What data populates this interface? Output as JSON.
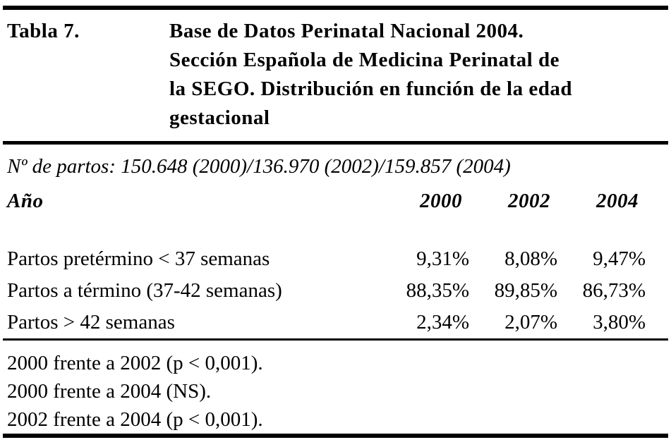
{
  "page": {
    "background": "#ffffff",
    "text_color": "#000000"
  },
  "table": {
    "label": "Tabla 7.",
    "title_lines": [
      "Base de Datos Perinatal Nacional 2004.",
      "Sección Española de Medicina Perinatal de",
      "la SEGO. Distribución en función de la edad",
      "gestacional"
    ],
    "subtitle": "Nº de partos: 150.648 (2000)/136.970 (2002)/159.857 (2004)",
    "columns": {
      "row_header": "Año",
      "years": [
        "2000",
        "2002",
        "2004"
      ]
    },
    "rows": [
      {
        "label": "Partos pretérmino < 37 semanas",
        "values": [
          "9,31%",
          "8,08%",
          "9,47%"
        ]
      },
      {
        "label": "Partos a término (37-42 semanas)",
        "values": [
          "88,35%",
          "89,85%",
          "86,73%"
        ]
      },
      {
        "label": "Partos > 42 semanas",
        "values": [
          "2,34%",
          "2,07%",
          "3,80%"
        ]
      }
    ],
    "footnotes": [
      "2000 frente a 2002 (p < 0,001).",
      "2000 frente a 2004 (NS).",
      "2002 frente a 2004 (p < 0,001)."
    ]
  },
  "chart_data": {
    "type": "table",
    "title": "Base de Datos Perinatal Nacional 2004. Sección Española de Medicina Perinatal de la SEGO. Distribución en función de la edad gestacional",
    "subtitle": "Nº de partos: 150.648 (2000)/136.970 (2002)/159.857 (2004)",
    "categories": [
      "Partos pretérmino < 37 semanas",
      "Partos a término (37-42 semanas)",
      "Partos > 42 semanas"
    ],
    "series": [
      {
        "name": "2000",
        "values": [
          9.31,
          88.35,
          2.34
        ]
      },
      {
        "name": "2002",
        "values": [
          8.08,
          89.85,
          2.07
        ]
      },
      {
        "name": "2004",
        "values": [
          9.47,
          86.73,
          3.8
        ]
      }
    ],
    "unit": "%",
    "notes": [
      "2000 frente a 2002 (p < 0,001).",
      "2000 frente a 2004 (NS).",
      "2002 frente a 2004 (p < 0,001)."
    ]
  }
}
